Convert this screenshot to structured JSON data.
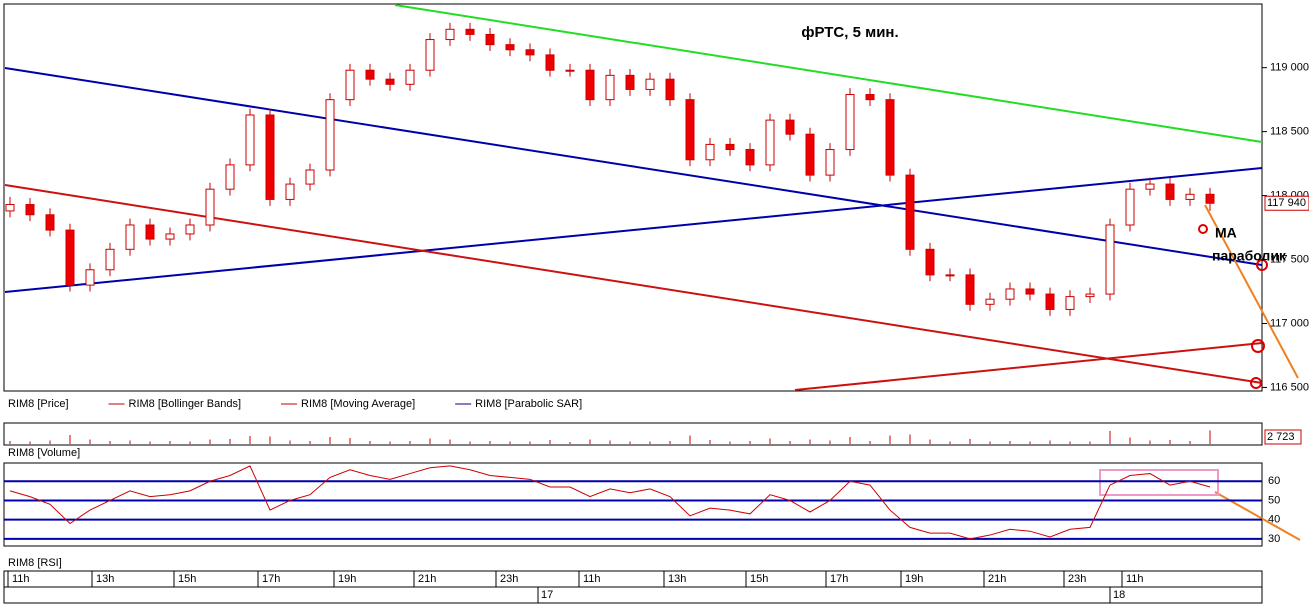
{
  "chart_data": {
    "type": "candlestick",
    "title": "фРТС, 5 мин.",
    "annotations": [
      "MA",
      "параболик"
    ],
    "legend": [
      {
        "name": "RIM8 [Price]",
        "color": "#000000"
      },
      {
        "name": "RIM8 [Bollinger Bands]",
        "color": "#c00000"
      },
      {
        "name": "RIM8 [Moving Average]",
        "color": "#c00000"
      },
      {
        "name": "RIM8 [Parabolic SAR]",
        "color": "#00008b"
      }
    ],
    "ylim": [
      116480,
      119490
    ],
    "yticks": [
      {
        "value": 116500,
        "label": "116 500"
      },
      {
        "value": 117000,
        "label": "117 000"
      },
      {
        "value": 117500,
        "label": "117 500"
      },
      {
        "value": 118000,
        "label": "118 000"
      },
      {
        "value": 118500,
        "label": "118 500"
      },
      {
        "value": 119000,
        "label": "119 000"
      }
    ],
    "last_price": {
      "value": 117940,
      "label": "117 940"
    },
    "candles": [
      [
        117880,
        117990,
        117830,
        117930
      ],
      [
        117930,
        117980,
        117800,
        117850
      ],
      [
        117850,
        117900,
        117680,
        117730
      ],
      [
        117730,
        117780,
        117250,
        117300
      ],
      [
        117300,
        117470,
        117250,
        117420
      ],
      [
        117420,
        117630,
        117370,
        117580
      ],
      [
        117580,
        117820,
        117530,
        117770
      ],
      [
        117770,
        117820,
        117610,
        117660
      ],
      [
        117660,
        117750,
        117610,
        117700
      ],
      [
        117700,
        117820,
        117650,
        117770
      ],
      [
        117770,
        118100,
        117720,
        118050
      ],
      [
        118050,
        118290,
        118000,
        118240
      ],
      [
        118240,
        118680,
        118190,
        118630
      ],
      [
        118630,
        118680,
        117920,
        117970
      ],
      [
        117970,
        118140,
        117920,
        118090
      ],
      [
        118090,
        118250,
        118040,
        118200
      ],
      [
        118200,
        118800,
        118150,
        118750
      ],
      [
        118750,
        119030,
        118700,
        118980
      ],
      [
        118980,
        119030,
        118860,
        118910
      ],
      [
        118910,
        118960,
        118820,
        118870
      ],
      [
        118870,
        119030,
        118820,
        118980
      ],
      [
        118980,
        119270,
        118930,
        119220
      ],
      [
        119220,
        119350,
        119170,
        119300
      ],
      [
        119300,
        119350,
        119210,
        119260
      ],
      [
        119260,
        119310,
        119130,
        119180
      ],
      [
        119180,
        119230,
        119090,
        119140
      ],
      [
        119140,
        119190,
        119050,
        119100
      ],
      [
        119100,
        119150,
        118930,
        118980
      ],
      [
        118980,
        119030,
        118930,
        118980
      ],
      [
        118980,
        119030,
        118700,
        118750
      ],
      [
        118750,
        118990,
        118700,
        118940
      ],
      [
        118940,
        118990,
        118780,
        118830
      ],
      [
        118830,
        118960,
        118780,
        118910
      ],
      [
        118910,
        118960,
        118700,
        118750
      ],
      [
        118750,
        118800,
        118230,
        118280
      ],
      [
        118280,
        118450,
        118230,
        118400
      ],
      [
        118400,
        118450,
        118310,
        118360
      ],
      [
        118360,
        118410,
        118190,
        118240
      ],
      [
        118240,
        118640,
        118190,
        118590
      ],
      [
        118590,
        118640,
        118430,
        118480
      ],
      [
        118480,
        118530,
        118110,
        118160
      ],
      [
        118160,
        118410,
        118110,
        118360
      ],
      [
        118360,
        118840,
        118310,
        118790
      ],
      [
        118790,
        118840,
        118700,
        118750
      ],
      [
        118750,
        118800,
        118110,
        118160
      ],
      [
        118160,
        118210,
        117530,
        117580
      ],
      [
        117580,
        117630,
        117330,
        117380
      ],
      [
        117380,
        117430,
        117330,
        117380
      ],
      [
        117380,
        117430,
        117100,
        117150
      ],
      [
        117150,
        117240,
        117100,
        117190
      ],
      [
        117190,
        117320,
        117140,
        117270
      ],
      [
        117270,
        117320,
        117180,
        117230
      ],
      [
        117230,
        117280,
        117060,
        117110
      ],
      [
        117110,
        117260,
        117060,
        117210
      ],
      [
        117210,
        117280,
        117160,
        117230
      ],
      [
        117230,
        117820,
        117180,
        117770
      ],
      [
        117770,
        118100,
        117720,
        118050
      ],
      [
        118050,
        118140,
        118000,
        118090
      ],
      [
        118090,
        118140,
        117920,
        117970
      ],
      [
        117970,
        118060,
        117920,
        118010
      ],
      [
        118010,
        118060,
        117880,
        117940
      ]
    ],
    "volume_label": "RIM8 [Volume]",
    "volume_last": {
      "value": 2723,
      "label": "2 723"
    },
    "volume_lim": [
      0,
      4000
    ],
    "volumes": [
      600,
      500,
      700,
      1800,
      900,
      600,
      700,
      500,
      600,
      500,
      900,
      1000,
      1600,
      1500,
      700,
      600,
      1400,
      1200,
      600,
      500,
      600,
      1100,
      900,
      500,
      600,
      500,
      500,
      800,
      400,
      900,
      700,
      500,
      500,
      600,
      1700,
      800,
      500,
      600,
      1100,
      600,
      900,
      700,
      1400,
      600,
      1700,
      1900,
      900,
      500,
      1000,
      500,
      600,
      500,
      700,
      500,
      500,
      2600,
      1300,
      700,
      800,
      600,
      2723
    ],
    "rsi_label": "RIM8 [RSI]",
    "rsi_lim": [
      26.3,
      69.5
    ],
    "rsi_ticks": [
      30,
      40,
      50,
      60
    ],
    "rsi": [
      55,
      52,
      48,
      38,
      45,
      50,
      55,
      52,
      53,
      55,
      60,
      63,
      68,
      45,
      50,
      53,
      62,
      66,
      63,
      61,
      64,
      67,
      68,
      66,
      63,
      62,
      61,
      57,
      57,
      52,
      56,
      54,
      56,
      52,
      42,
      46,
      45,
      43,
      53,
      50,
      44,
      50,
      60,
      58,
      45,
      36,
      33,
      33,
      30,
      32,
      35,
      34,
      31,
      35,
      36,
      58,
      63,
      64,
      58,
      60,
      57
    ],
    "time_labels": [
      "11h",
      "13h",
      "15h",
      "17h",
      "19h",
      "21h",
      "23h",
      "11h",
      "13h",
      "15h",
      "17h",
      "19h",
      "21h",
      "23h",
      "11h"
    ],
    "dates": [
      "17",
      "18"
    ]
  }
}
